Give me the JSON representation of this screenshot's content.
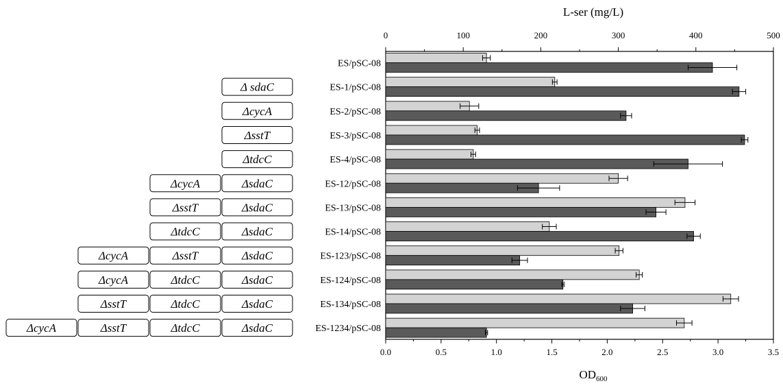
{
  "chart_data": {
    "type": "bar",
    "orientation": "horizontal",
    "top_axis": {
      "label": "L-ser (mg/L)",
      "lim": [
        0,
        500
      ],
      "ticks": [
        0,
        100,
        200,
        300,
        400,
        500
      ]
    },
    "bottom_axis": {
      "label_main": "OD",
      "label_sub": "600",
      "lim": [
        0,
        3.5
      ],
      "ticks": [
        "0.0",
        "0.5",
        "1.0",
        "1.5",
        "2.0",
        "2.5",
        "3.0",
        "3.5"
      ]
    },
    "series": [
      {
        "key": "lser",
        "axis": "top",
        "color": "#d3d3d3"
      },
      {
        "key": "od",
        "axis": "bottom",
        "color": "#5a5a5a"
      }
    ],
    "rows": [
      {
        "strain": "ES/pSC-08",
        "genes": [],
        "lser": 130,
        "lser_err": 5,
        "od": 2.95,
        "od_err": 0.22
      },
      {
        "strain": "ES-1/pSC-08",
        "genes": [
          "Δ sdaC"
        ],
        "lser": 218,
        "lser_err": 3,
        "od": 3.19,
        "od_err": 0.06
      },
      {
        "strain": "ES-2/pSC-08",
        "genes": [
          "ΔcycA"
        ],
        "lser": 108,
        "lser_err": 12,
        "od": 2.17,
        "od_err": 0.05
      },
      {
        "strain": "ES-3/pSC-08",
        "genes": [
          "ΔsstT"
        ],
        "lser": 118,
        "lser_err": 3,
        "od": 3.24,
        "od_err": 0.03
      },
      {
        "strain": "ES-4/pSC-08",
        "genes": [
          "ΔtdcC"
        ],
        "lser": 113,
        "lser_err": 3,
        "od": 2.73,
        "od_err": 0.31
      },
      {
        "strain": "ES-12/pSC-08",
        "genes": [
          "ΔcycA",
          "ΔsdaC"
        ],
        "lser": 300,
        "lser_err": 12,
        "od": 1.38,
        "od_err": 0.19
      },
      {
        "strain": "ES-13/pSC-08",
        "genes": [
          "ΔsstT",
          "ΔsdaC"
        ],
        "lser": 386,
        "lser_err": 13,
        "od": 2.44,
        "od_err": 0.09
      },
      {
        "strain": "ES-14/pSC-08",
        "genes": [
          "ΔtdcC",
          "ΔsdaC"
        ],
        "lser": 211,
        "lser_err": 9,
        "od": 2.78,
        "od_err": 0.06
      },
      {
        "strain": "ES-123/pSC-08",
        "genes": [
          "ΔcycA",
          "ΔsstT",
          "ΔsdaC"
        ],
        "lser": 301,
        "lser_err": 5,
        "od": 1.21,
        "od_err": 0.07
      },
      {
        "strain": "ES-124/pSC-08",
        "genes": [
          "ΔcycA",
          "ΔtdcC",
          "ΔsdaC"
        ],
        "lser": 327,
        "lser_err": 4,
        "od": 1.6,
        "od_err": 0.01
      },
      {
        "strain": "ES-134/pSC-08",
        "genes": [
          "ΔsstT",
          "ΔtdcC",
          "ΔsdaC"
        ],
        "lser": 445,
        "lser_err": 10,
        "od": 2.23,
        "od_err": 0.11
      },
      {
        "strain": "ES-1234/pSC-08",
        "genes": [
          "ΔcycA",
          "ΔsstT",
          "ΔtdcC",
          "ΔsdaC"
        ],
        "lser": 385,
        "lser_err": 10,
        "od": 0.91,
        "od_err": 0.01
      }
    ]
  }
}
